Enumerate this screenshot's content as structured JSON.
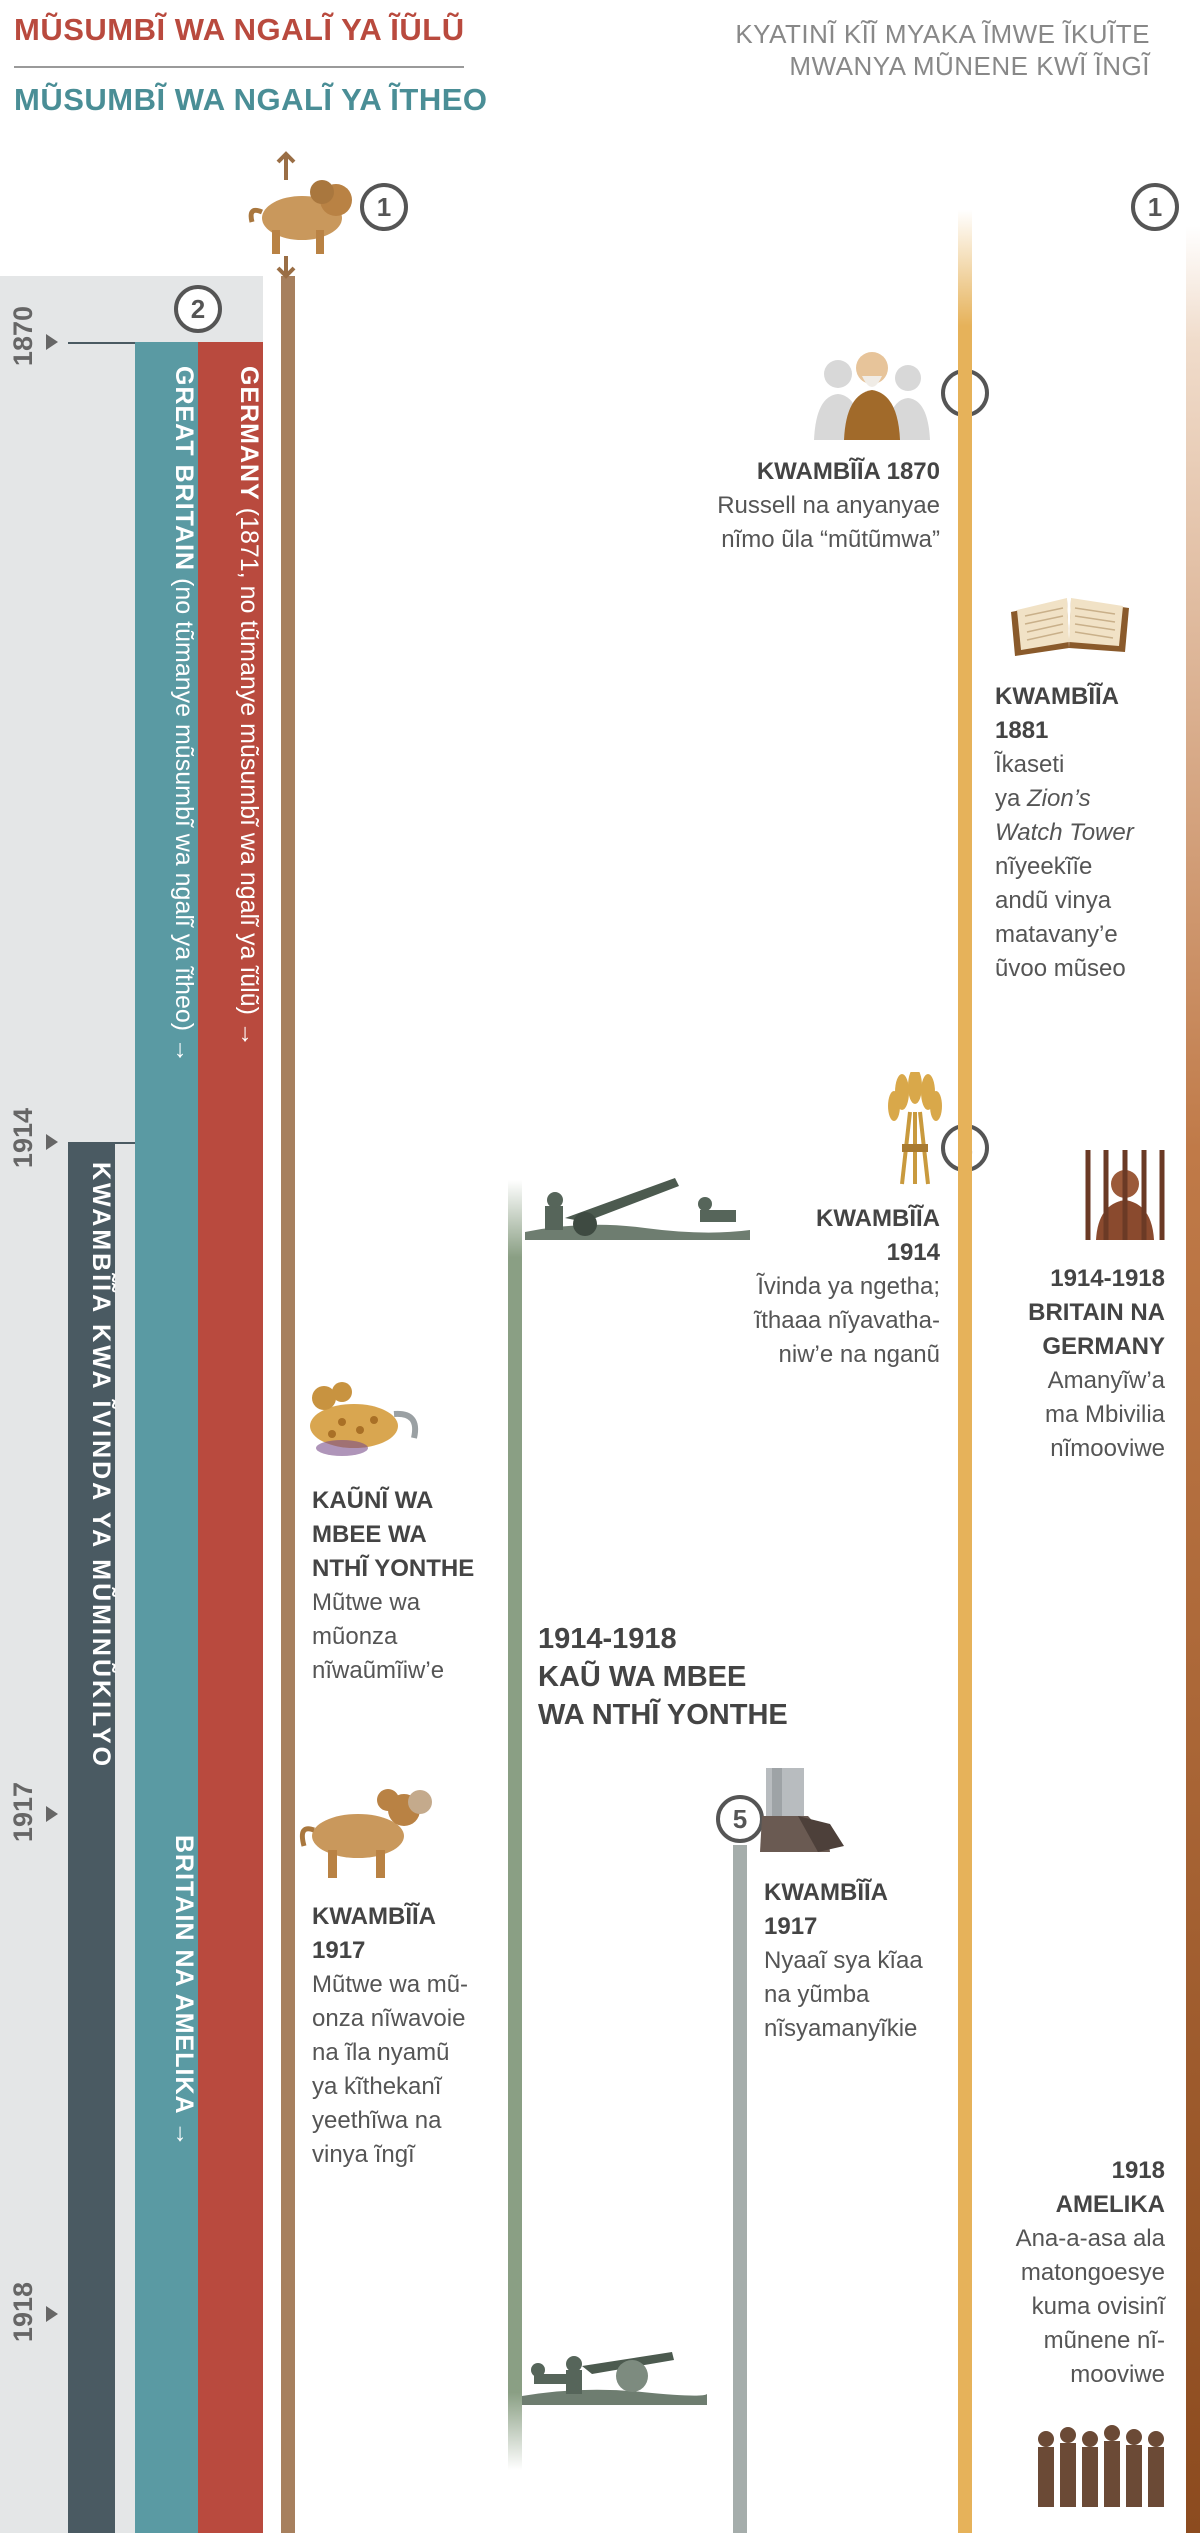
{
  "header": {
    "title_red": "MŨSUMBĨ WA NGALĨ YA ĨŨLŨ",
    "title_teal": "MŨSUMBĨ WA NGALĨ YA ĨTHEO",
    "right_line1": "KYATINĨ KĨĨ MYAKA ĨMWE ĨKUĨTE",
    "right_line2": "MWANYA MŨNENE KWĨ ĨNGĨ"
  },
  "markers": [
    "1",
    "2",
    "3",
    "4",
    "5",
    "1"
  ],
  "years": [
    "1870",
    "1914",
    "1917",
    "1918"
  ],
  "bars": {
    "germany_bold": "GERMANY",
    "germany_rest": " (1871, no tũmanye mũsumbĩ wa ngalĩ ya ĩũlũ) →",
    "britain_bold": "GREAT BRITAIN",
    "britain_rest": " (no tũmanye mũsumbĩ wa ngalĩ ya ĩtheo) →",
    "britain_america": "BRITAIN NA AMELIKA →",
    "end_times": "KWAMBĨĨA KWA ĨVINDA YA MŨMINŨKILYO"
  },
  "events": {
    "e1870": {
      "title": "KWAMBĨĨA 1870",
      "lines": [
        "Russell na anyanyae",
        "nĩmo ũla “mũtũmwa”"
      ]
    },
    "e1881": {
      "title_1": "KWAMBĨĨA",
      "title_2": "1881",
      "l1": "Ĩkaseti",
      "l2a": "ya ",
      "l2b": "Zion’s",
      "l3": "Watch Tower",
      "l4": "nĩyeekĩĩe",
      "l5": "andũ vinya",
      "l6": "matavany’e",
      "l7": "ũvoo mũseo"
    },
    "e1914": {
      "title_1": "KWAMBĨĨA",
      "title_2": "1914",
      "lines": [
        "Ĩvinda ya ngetha;",
        "ĩthaaa nĩyavatha-",
        "niw’e na nganũ"
      ]
    },
    "war_start": {
      "title_1": "KAŨNĨ WA",
      "title_2": "MBEE WA",
      "title_3": "NTHĨ YONTHE",
      "lines": [
        "Mũtwe wa",
        "mũonza",
        "nĩwaũmĩiw’e"
      ]
    },
    "war_mid": {
      "line1": "1914-1918",
      "line2": "KAŨ WA MBEE",
      "line3": "WA NTHĨ YONTHE"
    },
    "persecution": {
      "title_1": "1914-1918",
      "title_2": "BRITAIN NA",
      "title_3": "GERMANY",
      "lines": [
        "Amanyĩw’a",
        "ma Mbivilia",
        "nĩmooviwe"
      ]
    },
    "e1917_beast": {
      "title_1": "KWAMBĨĨA",
      "title_2": "1917",
      "lines": [
        "Mũtwe wa mũ-",
        "onza nĩwavoie",
        "na ĩla nyamũ",
        "ya kĩthekanĩ",
        "yeethĩwa na",
        "vinya ĩngĩ"
      ]
    },
    "e1917_feet": {
      "title_1": "KWAMBĨĨA",
      "title_2": "1917",
      "lines": [
        "Nyaaĩ sya kĩaa",
        "na yũmba",
        "nĩsyamanyĩkie"
      ]
    },
    "e1918": {
      "title_1": "1918",
      "title_2": "AMELIKA",
      "lines": [
        "Ana-a-asa ala",
        "matongoesye",
        "kuma ovisinĩ",
        "mũnene nĩ-",
        "mooviwe"
      ]
    }
  },
  "colors": {
    "red": "#b94a3e",
    "teal": "#5a9aa3",
    "slate": "#4a5a62",
    "brown": "#a7805e",
    "green": "#8a9f84",
    "grey": "#a5adab",
    "gold": "#e6b25a",
    "rust": "#8c4b1f"
  }
}
